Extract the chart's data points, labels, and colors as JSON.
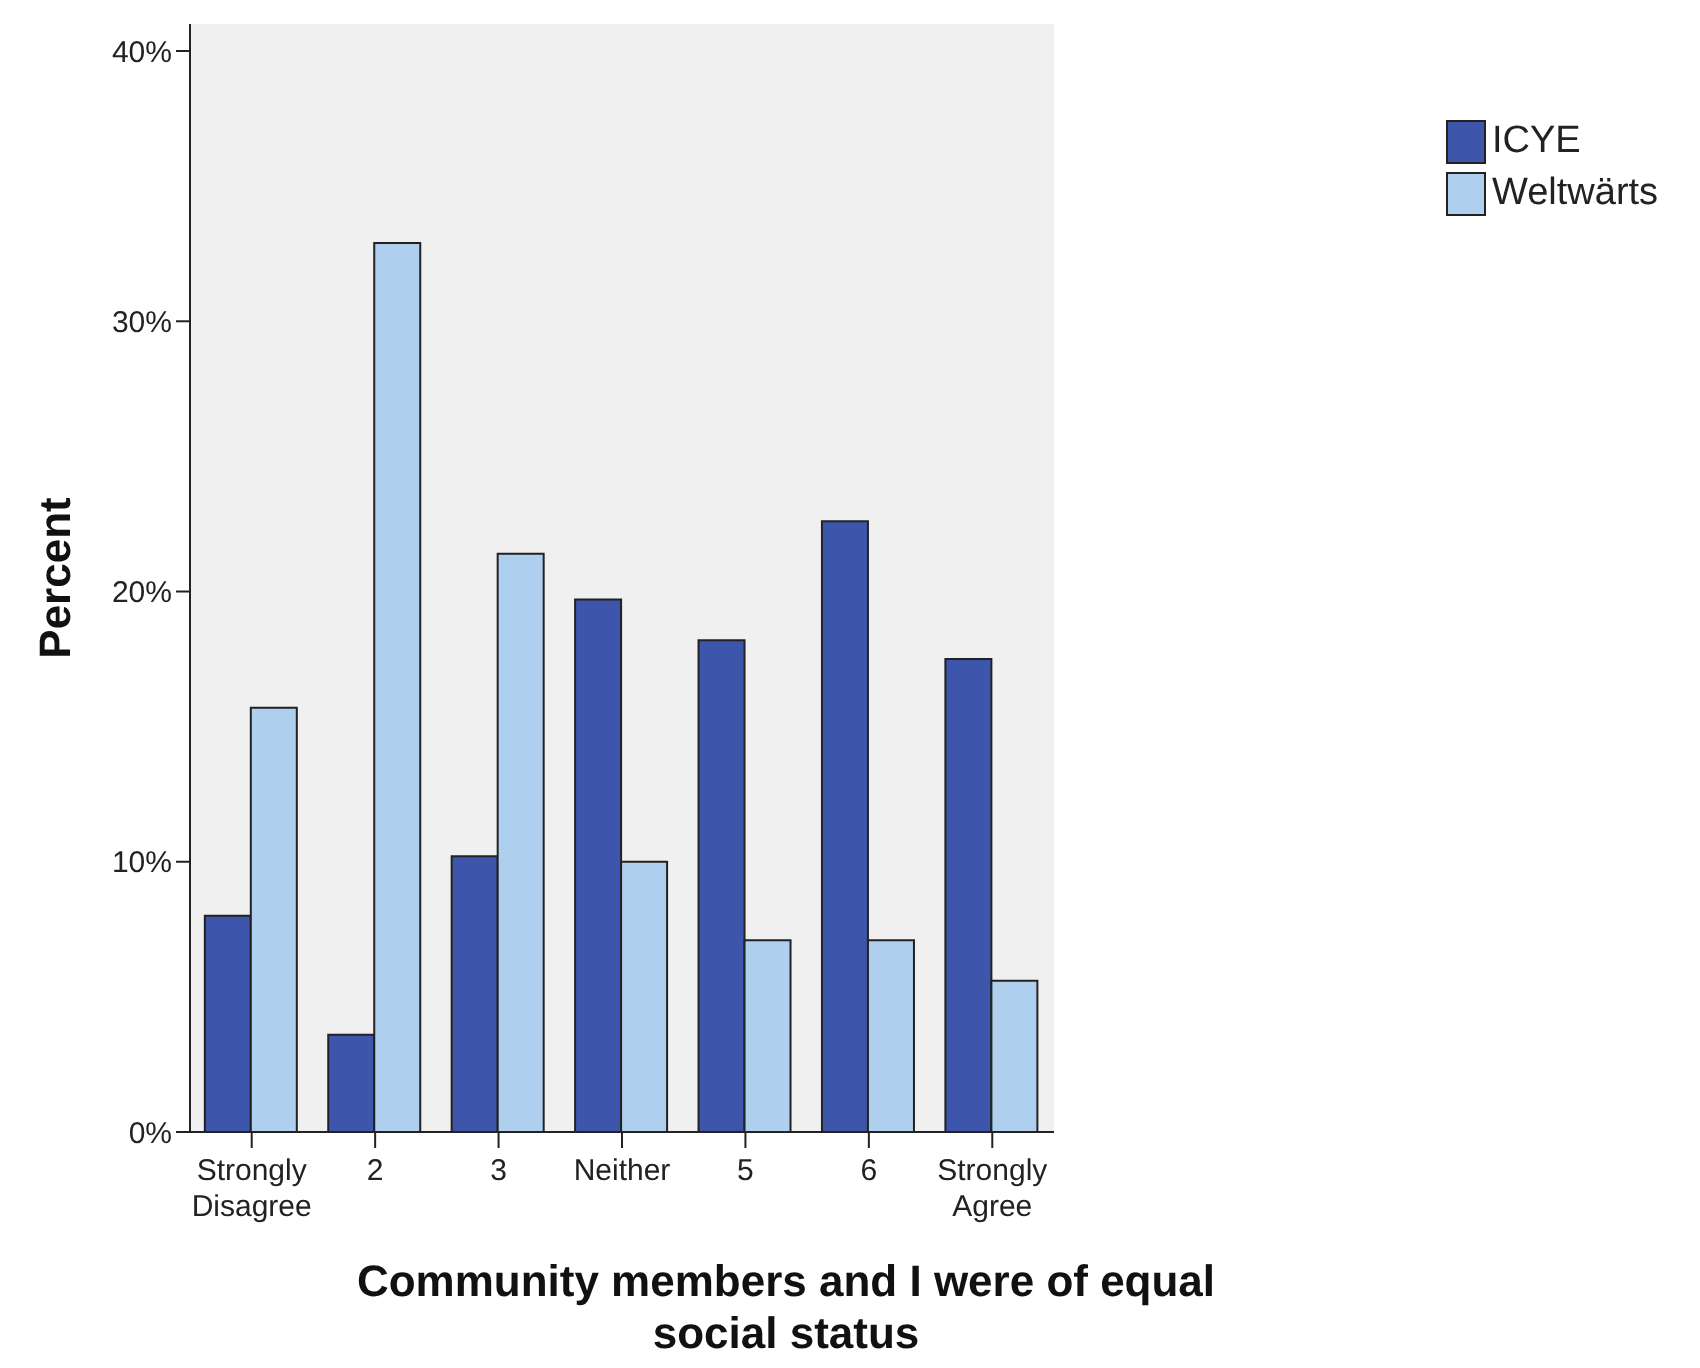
{
  "chart_data": {
    "type": "bar",
    "xlabel": "Community members and I were of equal social status",
    "ylabel": "Percent",
    "categories": [
      "Strongly Disagree",
      "2",
      "3",
      "Neither",
      "5",
      "6",
      "Strongly Agree"
    ],
    "series": [
      {
        "name": "ICYE",
        "color": "#3d56ab",
        "values": [
          8.0,
          3.6,
          10.2,
          19.7,
          18.2,
          22.6,
          17.5
        ]
      },
      {
        "name": "Weltwärts",
        "color": "#aecfee",
        "values": [
          15.7,
          32.9,
          21.4,
          10.0,
          7.1,
          7.1,
          5.6
        ]
      }
    ],
    "ylim": [
      0,
      41
    ],
    "yticks": [
      {
        "value": 0,
        "label": "0%"
      },
      {
        "value": 10,
        "label": "10%"
      },
      {
        "value": 20,
        "label": "20%"
      },
      {
        "value": 30,
        "label": "30%"
      },
      {
        "value": 40,
        "label": "40%"
      }
    ],
    "grid": false,
    "legend": "top right"
  }
}
